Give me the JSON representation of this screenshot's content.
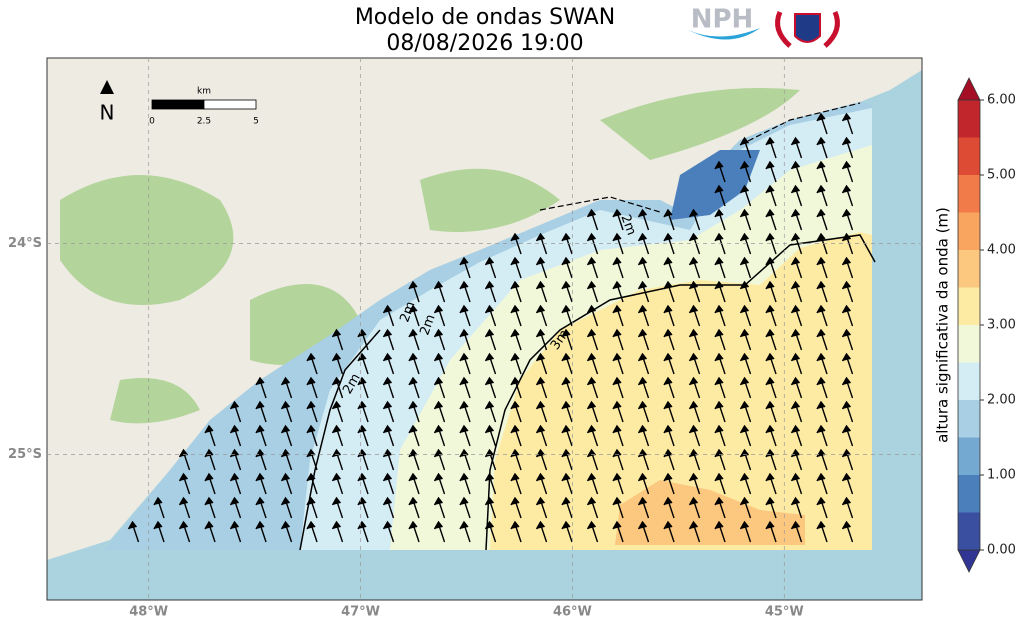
{
  "title_lines": [
    "Modelo de ondas SWAN",
    "08/08/2026 19:00"
  ],
  "logo_text": "NPH",
  "map": {
    "xlim": [
      -48.48,
      -44.35
    ],
    "ylim": [
      -25.69,
      -23.12
    ],
    "xticks": [
      {
        "value": -48,
        "label": "48°W"
      },
      {
        "value": -47,
        "label": "47°W"
      },
      {
        "value": -46,
        "label": "46°W"
      },
      {
        "value": -45,
        "label": "45°W"
      }
    ],
    "yticks": [
      {
        "value": -24,
        "label": "24°S"
      },
      {
        "value": -25,
        "label": "25°S"
      }
    ],
    "grid": true,
    "north_label": "N",
    "scale_bar": {
      "unit": "km",
      "ticks": [
        0,
        2.5,
        5
      ]
    },
    "contour_labels": [
      "2m",
      "2m",
      "2m",
      "2m",
      "3m"
    ]
  },
  "colorbar": {
    "label": "altura significativa da onda (m)",
    "lim": [
      0,
      6
    ],
    "ticks": [
      {
        "value": 0,
        "label": "0.00"
      },
      {
        "value": 1,
        "label": "1.00"
      },
      {
        "value": 2,
        "label": "2.00"
      },
      {
        "value": 3,
        "label": "3.00"
      },
      {
        "value": 4,
        "label": "4.00"
      },
      {
        "value": 5,
        "label": "5.00"
      },
      {
        "value": 6,
        "label": "6.00"
      }
    ],
    "levels": [
      0,
      0.5,
      1,
      1.5,
      2,
      2.5,
      3,
      3.5,
      4,
      4.5,
      5,
      5.5,
      6
    ],
    "colors": [
      "#3b4fa0",
      "#4a7fbc",
      "#74aad1",
      "#a8cfe4",
      "#d4ecf4",
      "#f1f8da",
      "#fdeba4",
      "#fcc77e",
      "#f9a45f",
      "#f27b4a",
      "#dd4b34",
      "#c0262c"
    ],
    "under_color": "#313695",
    "over_color": "#a50f26"
  }
}
